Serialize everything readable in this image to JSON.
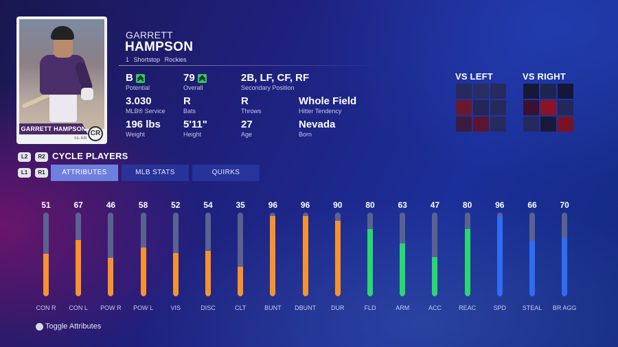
{
  "card": {
    "name": "GARRETT HAMPSON",
    "pos": "SS- R/R",
    "logo": "CR"
  },
  "player": {
    "first_name": "GARRETT",
    "last_name": "HAMPSON",
    "number": "1",
    "position": "Shortstop",
    "team": "Rockies"
  },
  "stats": {
    "potential": {
      "value": "B",
      "label": "Potential",
      "icon": "double-up-arrow-icon"
    },
    "overall": {
      "value": "79",
      "label": "Overall",
      "icon": "double-up-arrow-icon"
    },
    "secondary": {
      "value": "2B, LF, CF, RF",
      "label": "Secondary Position"
    },
    "service": {
      "value": "3.030",
      "label": "MLB® Service"
    },
    "bats": {
      "value": "R",
      "label": "Bats"
    },
    "throws": {
      "value": "R",
      "label": "Throws"
    },
    "tendency": {
      "value": "Whole Field",
      "label": "Hitter Tendency"
    },
    "weight": {
      "value": "196 lbs",
      "label": "Weight"
    },
    "height": {
      "value": "5'11\"",
      "label": "Height"
    },
    "age": {
      "value": "27",
      "label": "Age"
    },
    "born": {
      "value": "Nevada",
      "label": "Born"
    }
  },
  "vs_left": {
    "title": "VS LEFT",
    "cells": [
      "#272a5c",
      "#2a2d62",
      "#262a5e",
      "#6a1830",
      "#232656",
      "#26295c",
      "#3a1c40",
      "#5b1530",
      "#262a5e"
    ]
  },
  "vs_right": {
    "title": "VS RIGHT",
    "cells": [
      "#161838",
      "#1e2450",
      "#14163a",
      "#3a1230",
      "#8a1426",
      "#22285a",
      "#252a5e",
      "#181a3c",
      "#7a1226"
    ]
  },
  "controls": {
    "l2": "L2",
    "r2": "R2",
    "l1": "L1",
    "r1": "R1",
    "cycle": "CYCLE PLAYERS"
  },
  "tabs": [
    {
      "label": "ATTRIBUTES",
      "active": true
    },
    {
      "label": "MLB STATS",
      "active": false
    },
    {
      "label": "QUIRKS",
      "active": false
    }
  ],
  "colors": {
    "orange": "#f7922e",
    "green": "#29d86e",
    "blue": "#2f6cf2"
  },
  "attributes": [
    {
      "label": "CON R",
      "value": 51,
      "color": "orange"
    },
    {
      "label": "CON L",
      "value": 67,
      "color": "orange"
    },
    {
      "label": "POW R",
      "value": 46,
      "color": "orange"
    },
    {
      "label": "POW L",
      "value": 58,
      "color": "orange"
    },
    {
      "label": "VIS",
      "value": 52,
      "color": "orange"
    },
    {
      "label": "DISC",
      "value": 54,
      "color": "orange"
    },
    {
      "label": "CLT",
      "value": 35,
      "color": "orange"
    },
    {
      "label": "BUNT",
      "value": 96,
      "color": "orange"
    },
    {
      "label": "DBUNT",
      "value": 96,
      "color": "orange"
    },
    {
      "label": "DUR",
      "value": 90,
      "color": "orange"
    },
    {
      "label": "FLD",
      "value": 80,
      "color": "green"
    },
    {
      "label": "ARM",
      "value": 63,
      "color": "green"
    },
    {
      "label": "ACC",
      "value": 47,
      "color": "green"
    },
    {
      "label": "REAC",
      "value": 80,
      "color": "green"
    },
    {
      "label": "SPD",
      "value": 96,
      "color": "blue"
    },
    {
      "label": "STEAL",
      "value": 66,
      "color": "blue"
    },
    {
      "label": "BR AGG",
      "value": 70,
      "color": "blue"
    }
  ],
  "footer": {
    "toggle_label": "Toggle Attributes",
    "toggle_icon": "circle-button-icon"
  }
}
